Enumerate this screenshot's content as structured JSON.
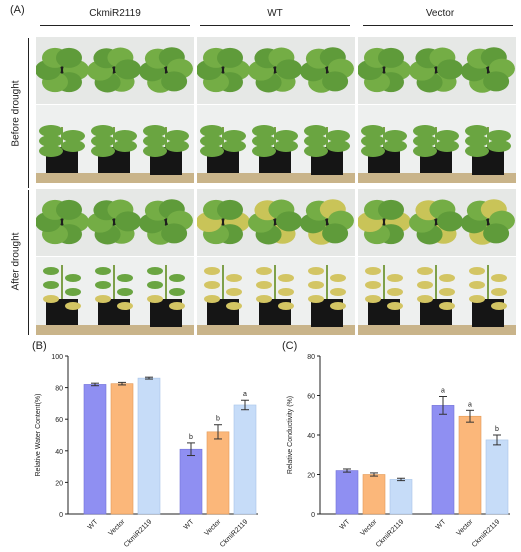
{
  "figure": {
    "panel_a_label": "(A)",
    "panel_b_label": "(B)",
    "panel_c_label": "(C)",
    "columns": [
      "CkmiR2119",
      "WT",
      "Vector"
    ],
    "rows": [
      "Before drought",
      "After drought"
    ]
  },
  "colors": {
    "wt": "#8f8ff2",
    "vector": "#fbb77a",
    "ckmir": "#c6dcf8",
    "error": "#333333"
  },
  "chart_data": [
    {
      "type": "bar",
      "panel": "(B)",
      "ylabel": "Relative Water Content(%)",
      "ylim": [
        0,
        100
      ],
      "yticks": [
        0,
        20,
        40,
        60,
        80,
        100
      ],
      "groups": [
        {
          "categories": [
            "WT",
            "Vector",
            "CkmiR2119"
          ],
          "values": [
            82,
            82.5,
            86
          ],
          "errors": [
            0.8,
            0.8,
            0.6
          ],
          "letters": [
            "",
            "",
            ""
          ]
        },
        {
          "categories": [
            "WT",
            "Vector",
            "CkmiR2119"
          ],
          "values": [
            41,
            52,
            69
          ],
          "errors": [
            4,
            4.5,
            3
          ],
          "letters": [
            "b",
            "b",
            "a"
          ]
        }
      ]
    },
    {
      "type": "bar",
      "panel": "(C)",
      "ylabel": "Relative Conductivity (%)",
      "ylim": [
        0,
        80
      ],
      "yticks": [
        0,
        20,
        40,
        60,
        80
      ],
      "groups": [
        {
          "categories": [
            "WT",
            "Vector",
            "CkmiR2119"
          ],
          "values": [
            22,
            20,
            17.5
          ],
          "errors": [
            0.8,
            0.8,
            0.6
          ],
          "letters": [
            "",
            "",
            ""
          ]
        },
        {
          "categories": [
            "WT",
            "Vector",
            "CkmiR2119"
          ],
          "values": [
            55,
            49.5,
            37.5
          ],
          "errors": [
            4.5,
            3,
            2.5
          ],
          "letters": [
            "a",
            "a",
            "b"
          ]
        }
      ]
    }
  ]
}
